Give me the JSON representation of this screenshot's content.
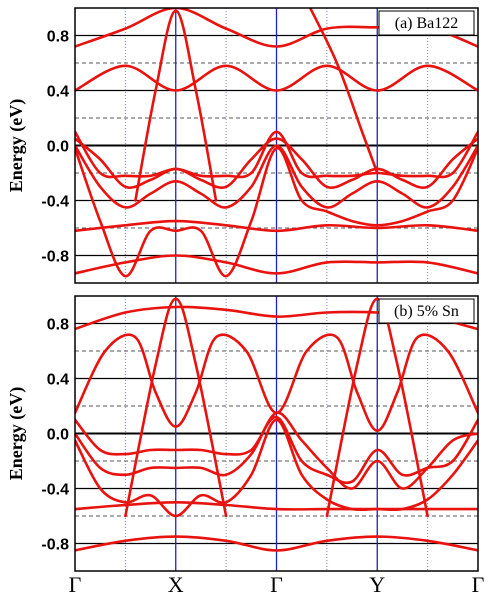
{
  "chart_data": [
    {
      "type": "line",
      "panel_label": "(a) Ba122",
      "ylabel": "Energy (eV)",
      "ylim": [
        -1.0,
        1.0
      ],
      "yticks": [
        "0.8",
        "0.4",
        "0.0",
        "-0.4",
        "-0.8"
      ],
      "ytick_values": [
        0.8,
        0.4,
        0.0,
        -0.4,
        -0.8
      ],
      "xlim": [
        0,
        4
      ],
      "kpoints": [
        0,
        1,
        2,
        3,
        4
      ],
      "kpoint_labels": [
        "Γ",
        "X",
        "Γ",
        "Y",
        "Γ"
      ],
      "solid_hlines": [
        -0.8,
        -0.4,
        0.0,
        0.4,
        0.8
      ],
      "dashed_hlines": [
        -0.6,
        -0.2,
        0.2,
        0.6
      ],
      "dotted_vlines": [
        0.5,
        1.5,
        2.5,
        3.5
      ],
      "series": [
        {
          "x": [
            0,
            0.5,
            1,
            1.5,
            2,
            2.5,
            3,
            3.5,
            4
          ],
          "values": [
            0.72,
            0.85,
            1.0,
            0.85,
            0.72,
            0.85,
            0.86,
            0.86,
            0.72
          ]
        },
        {
          "x": [
            0,
            0.5,
            1,
            1.5,
            2,
            2.5,
            3,
            3.5,
            4
          ],
          "values": [
            0.4,
            0.58,
            0.4,
            0.58,
            0.4,
            0.58,
            0.4,
            0.58,
            0.4
          ]
        },
        {
          "x": [
            0,
            0.25,
            0.5,
            0.75,
            1,
            1.25,
            1.5,
            1.75,
            2,
            2.25,
            2.5,
            2.75,
            3,
            3.25,
            3.5,
            3.75,
            4
          ],
          "values": [
            0.1,
            -0.2,
            -0.22,
            -0.22,
            -0.17,
            -0.22,
            -0.22,
            -0.2,
            0.1,
            -0.2,
            -0.22,
            -0.22,
            -0.2,
            -0.22,
            -0.22,
            -0.2,
            0.1
          ]
        },
        {
          "x": [
            0,
            0.25,
            0.5,
            0.75,
            1,
            1.25,
            1.5,
            1.75,
            2,
            2.25,
            2.5,
            2.75,
            3,
            3.25,
            3.5,
            3.75,
            4
          ],
          "values": [
            0.05,
            -0.1,
            -0.3,
            -0.25,
            -0.17,
            -0.25,
            -0.3,
            -0.1,
            0.05,
            -0.1,
            -0.3,
            -0.25,
            -0.17,
            -0.25,
            -0.3,
            -0.1,
            0.05
          ]
        },
        {
          "x": [
            0,
            0.25,
            0.5,
            0.75,
            1,
            1.25,
            1.5,
            1.75,
            2,
            2.25,
            2.5,
            2.75,
            3,
            3.25,
            3.5,
            3.75,
            4
          ],
          "values": [
            0.0,
            -0.3,
            -0.45,
            -0.35,
            -0.26,
            -0.35,
            -0.45,
            -0.3,
            0.0,
            -0.3,
            -0.45,
            -0.35,
            -0.26,
            -0.35,
            -0.45,
            -0.3,
            0.0
          ]
        },
        {
          "x": [
            0,
            0.25,
            0.5,
            0.75,
            1,
            1.25,
            1.5,
            1.75,
            2,
            2.25,
            2.5,
            2.75,
            3,
            3.25,
            3.5,
            3.75,
            4
          ],
          "values": [
            -0.02,
            -0.55,
            -0.95,
            -0.62,
            -0.62,
            -0.62,
            -0.95,
            -0.55,
            -0.02,
            -0.4,
            -0.48,
            -0.55,
            -0.58,
            -0.55,
            -0.48,
            -0.4,
            -0.02
          ]
        },
        {
          "x": [
            0,
            0.5,
            1,
            1.5,
            2,
            2.5,
            3,
            3.5,
            4
          ],
          "values": [
            -0.62,
            -0.58,
            -0.55,
            -0.58,
            -0.62,
            -0.58,
            -0.6,
            -0.58,
            -0.62
          ]
        },
        {
          "x": [
            0,
            0.5,
            1,
            1.5,
            2,
            2.5,
            3,
            3.5,
            4
          ],
          "values": [
            -0.93,
            -0.85,
            -0.8,
            -0.85,
            -0.93,
            -0.85,
            -0.85,
            -0.85,
            -0.93
          ]
        },
        {
          "x": [
            0.6,
            0.8,
            1,
            1.2,
            1.4
          ],
          "values": [
            -0.4,
            0.4,
            0.98,
            0.4,
            -0.4
          ]
        },
        {
          "x": [
            2.3,
            2.6,
            2.85,
            3.0
          ],
          "values": [
            1.05,
            0.6,
            0.1,
            -0.2
          ]
        }
      ]
    },
    {
      "type": "line",
      "panel_label": "(b) 5% Sn",
      "ylabel": "Energy (eV)",
      "ylim": [
        -1.0,
        1.0
      ],
      "yticks": [
        "0.8",
        "0.4",
        "0.0",
        "-0.4",
        "-0.8"
      ],
      "ytick_values": [
        0.8,
        0.4,
        0.0,
        -0.4,
        -0.8
      ],
      "xlim": [
        0,
        4
      ],
      "kpoints": [
        0,
        1,
        2,
        3,
        4
      ],
      "kpoint_labels": [
        "Γ",
        "X",
        "Γ",
        "Y",
        "Γ"
      ],
      "solid_hlines": [
        -0.8,
        -0.4,
        0.0,
        0.4,
        0.8
      ],
      "dashed_hlines": [
        -0.6,
        -0.2,
        0.2,
        0.6
      ],
      "dotted_vlines": [
        0.5,
        1.5,
        2.5,
        3.5
      ],
      "series": [
        {
          "x": [
            0,
            0.5,
            1,
            1.5,
            2,
            2.5,
            3,
            3.5,
            4
          ],
          "values": [
            0.76,
            0.88,
            0.92,
            0.9,
            0.85,
            0.88,
            0.88,
            0.85,
            0.76
          ]
        },
        {
          "x": [
            0,
            0.3,
            0.6,
            0.8,
            1,
            1.2,
            1.4,
            1.7,
            2,
            2.3,
            2.6,
            2.8,
            3,
            3.2,
            3.4,
            3.7,
            4
          ],
          "values": [
            0.15,
            0.6,
            0.7,
            0.3,
            0.05,
            0.3,
            0.7,
            0.6,
            0.15,
            0.6,
            0.7,
            0.3,
            0.02,
            0.3,
            0.7,
            0.6,
            0.15
          ]
        },
        {
          "x": [
            0,
            0.25,
            0.5,
            0.75,
            1,
            1.25,
            1.5,
            1.75,
            2,
            2.25,
            2.5,
            2.75,
            3,
            3.25,
            3.5,
            3.75,
            4
          ],
          "values": [
            0.1,
            -0.12,
            -0.15,
            -0.12,
            -0.12,
            -0.12,
            -0.15,
            -0.12,
            0.12,
            -0.2,
            -0.3,
            -0.35,
            -0.12,
            -0.3,
            -0.25,
            -0.2,
            0.1
          ]
        },
        {
          "x": [
            0,
            0.25,
            0.5,
            0.75,
            1,
            1.25,
            1.5,
            1.75,
            2,
            2.25,
            2.5,
            2.75,
            3,
            3.25,
            3.5,
            3.75,
            4
          ],
          "values": [
            0.0,
            -0.25,
            -0.3,
            -0.25,
            -0.25,
            -0.25,
            -0.3,
            -0.15,
            0.15,
            -0.05,
            -0.25,
            -0.4,
            -0.2,
            -0.4,
            -0.25,
            -0.05,
            0.0
          ]
        },
        {
          "x": [
            0,
            0.25,
            0.5,
            0.75,
            1,
            1.25,
            1.5,
            1.75,
            2,
            2.25,
            2.5,
            2.75,
            3,
            3.25,
            3.5,
            3.75,
            4
          ],
          "values": [
            -0.05,
            -0.4,
            -0.5,
            -0.45,
            -0.6,
            -0.45,
            -0.5,
            -0.3,
            0.1,
            -0.3,
            -0.48,
            -0.55,
            -0.55,
            -0.55,
            -0.48,
            -0.3,
            -0.05
          ]
        },
        {
          "x": [
            0,
            0.5,
            1,
            1.5,
            2,
            2.5,
            3,
            3.5,
            4
          ],
          "values": [
            -0.55,
            -0.52,
            -0.5,
            -0.52,
            -0.55,
            -0.55,
            -0.55,
            -0.55,
            -0.55
          ]
        },
        {
          "x": [
            0,
            0.5,
            1,
            1.5,
            2,
            2.5,
            3,
            3.5,
            4
          ],
          "values": [
            -0.85,
            -0.78,
            -0.75,
            -0.78,
            -0.85,
            -0.78,
            -0.75,
            -0.78,
            -0.85
          ]
        },
        {
          "x": [
            0.5,
            0.8,
            1,
            1.2,
            1.5
          ],
          "values": [
            -0.6,
            0.5,
            0.98,
            0.5,
            -0.6
          ]
        },
        {
          "x": [
            2.5,
            2.8,
            3,
            3.2,
            3.5
          ],
          "values": [
            -0.6,
            0.5,
            0.98,
            0.5,
            -0.6
          ]
        }
      ]
    }
  ],
  "colors": {
    "band": "#e8120f",
    "kpoint_line": "#1d22c9",
    "grid": "#000000",
    "dashed": "#555555",
    "dotted": "#7f86c8"
  }
}
